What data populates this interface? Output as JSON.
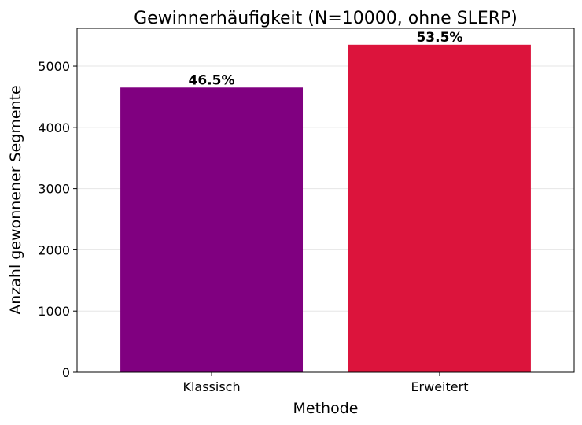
{
  "chart_data": {
    "type": "bar",
    "title": "Gewinnerhäufigkeit (N=10000, ohne SLERP)",
    "xlabel": "Methode",
    "ylabel": "Anzahl gewonnener Segmente",
    "categories": [
      "Klassisch",
      "Erweitert"
    ],
    "values": [
      4650,
      5350
    ],
    "data_labels": [
      "46.5%",
      "53.5%"
    ],
    "colors": [
      "#800080",
      "#dc143c"
    ],
    "yticks": [
      0,
      1000,
      2000,
      3000,
      4000,
      5000
    ],
    "ylim": [
      0,
      5617.5
    ],
    "grid": "y-dashed-light",
    "legend": "none"
  }
}
